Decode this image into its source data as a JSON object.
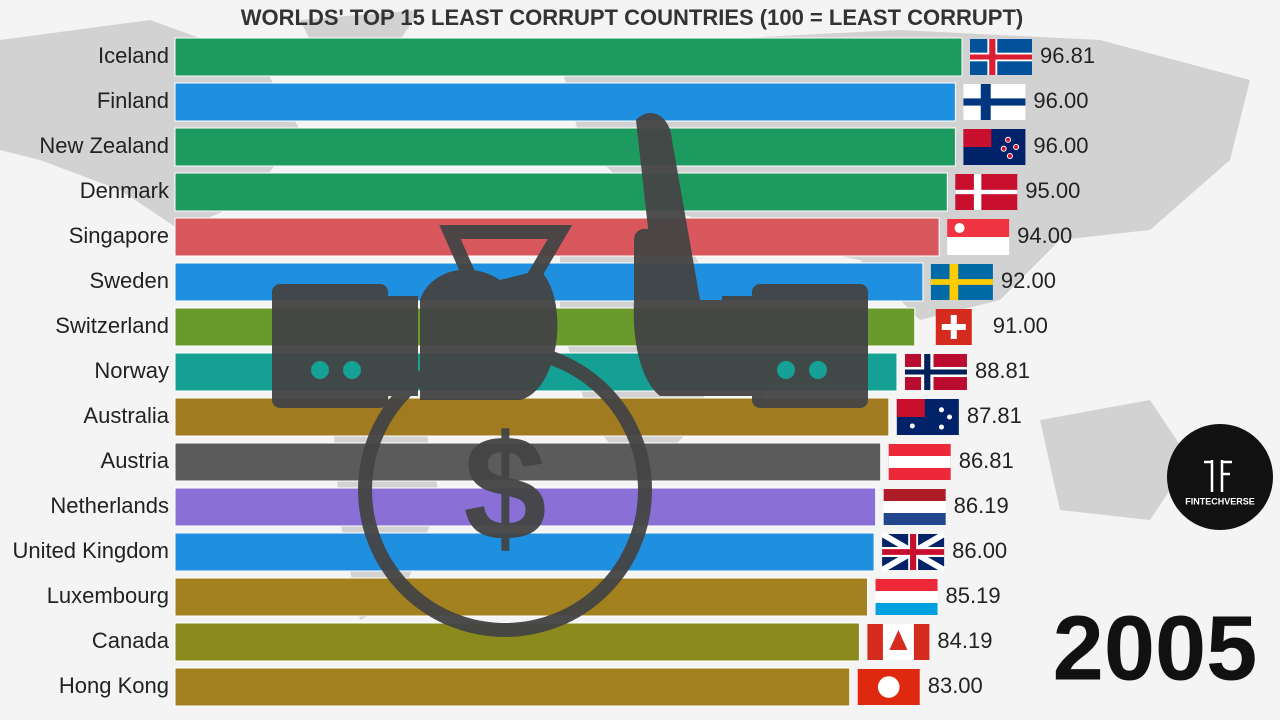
{
  "chart_data": {
    "type": "bar",
    "orientation": "horizontal",
    "title": "WORLDS' TOP 15 LEAST CORRUPT COUNTRIES (100 = LEAST CORRUPT)",
    "categories": [
      "Iceland",
      "Finland",
      "New Zealand",
      "Denmark",
      "Singapore",
      "Sweden",
      "Switzerland",
      "Norway",
      "Australia",
      "Austria",
      "Netherlands",
      "United Kingdom",
      "Luxembourg",
      "Canada",
      "Hong Kong"
    ],
    "values": [
      96.81,
      96.0,
      96.0,
      95.0,
      94.0,
      92.0,
      91.0,
      88.81,
      87.81,
      86.81,
      86.19,
      86.0,
      85.19,
      84.19,
      83.0
    ],
    "value_labels": [
      "96.81",
      "96.00",
      "96.00",
      "95.00",
      "94.00",
      "92.00",
      "91.00",
      "88.81",
      "87.81",
      "86.81",
      "86.19",
      "86.00",
      "85.19",
      "84.19",
      "83.00"
    ],
    "colors": [
      "#1c9a5f",
      "#1f8fdf",
      "#1c9a5f",
      "#1c9a5f",
      "#d8585e",
      "#1f8fdf",
      "#6b9a2c",
      "#15a096",
      "#a07b1f",
      "#5b5b5b",
      "#8a70d6",
      "#1f8fdf",
      "#a3811f",
      "#8a8a1d",
      "#a3811f"
    ],
    "year": 2005,
    "logo": "FINTECHVERSE"
  }
}
